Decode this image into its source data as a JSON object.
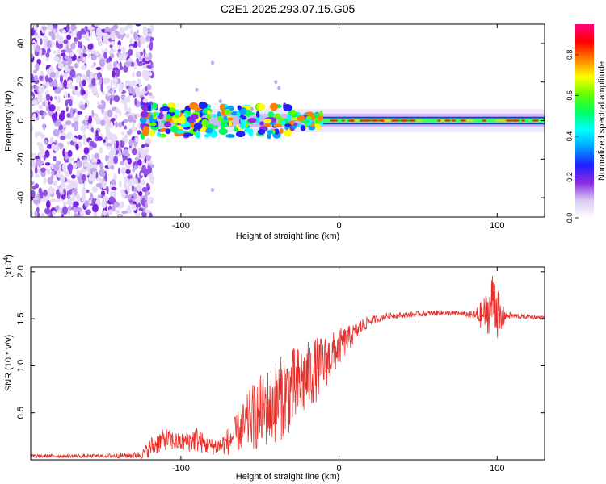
{
  "title": "C2E1.2025.293.07.15.G05",
  "chart_data": [
    {
      "type": "heatmap",
      "xlabel": "Height of straight line (km)",
      "ylabel": "Frequency (Hz)",
      "xlim": [
        -195,
        130
      ],
      "ylim": [
        -50,
        50
      ],
      "xticks": [
        -100,
        0,
        100
      ],
      "yticks": [
        -40,
        -20,
        0,
        20,
        40
      ],
      "colorbar": {
        "label": "Normalized spectral amplitude",
        "range": [
          0,
          0.95
        ],
        "ticks": [
          0,
          0.2,
          0.4,
          0.6,
          0.8
        ],
        "colors": [
          "#ffffff",
          "#d8c8f0",
          "#8a2be2",
          "#2020ff",
          "#00a0ff",
          "#00ffff",
          "#00ff60",
          "#60ff00",
          "#ffff00",
          "#ff8000",
          "#ff0000",
          "#ff0080"
        ]
      },
      "features": [
        {
          "region": "noise",
          "x_range": [
            -195,
            -118
          ],
          "y_range": [
            -50,
            50
          ],
          "amplitude": 0.15
        },
        {
          "region": "band",
          "x_range": [
            -125,
            130
          ],
          "y_center": 0,
          "amplitude": 0.55
        }
      ]
    },
    {
      "type": "line",
      "xlabel": "Height of straight line (km)",
      "ylabel": "SNR (10 * v/v)",
      "y_scale_label": "(x10",
      "y_scale_exp": "4",
      "xlim": [
        -195,
        130
      ],
      "ylim": [
        0,
        20500
      ],
      "xticks": [
        -100,
        0,
        100
      ],
      "yticks": [
        5000,
        10000,
        15000,
        20000
      ],
      "ytick_labels": [
        "0.5",
        "1.0",
        "1.5",
        "2.0"
      ],
      "series": [
        {
          "color": "#e8302a",
          "x": [
            -195,
            -150,
            -125,
            -118,
            -110,
            -100,
            -95,
            -90,
            -85,
            -80,
            -75,
            -70,
            -65,
            -60,
            -55,
            -50,
            -45,
            -40,
            -35,
            -30,
            -25,
            -20,
            -15,
            -10,
            -5,
            0,
            5,
            10,
            15,
            20,
            25,
            30,
            40,
            50,
            60,
            70,
            80,
            85,
            90,
            95,
            98,
            100,
            102,
            105,
            110,
            120,
            130
          ],
          "y": [
            400,
            400,
            500,
            1500,
            2200,
            1800,
            2000,
            2200,
            1600,
            1400,
            1500,
            2000,
            2800,
            3500,
            4500,
            5000,
            5600,
            6200,
            6800,
            7400,
            8000,
            8800,
            9500,
            10200,
            11000,
            12000,
            12700,
            13500,
            14300,
            14800,
            15000,
            15300,
            15400,
            15500,
            15600,
            15600,
            15500,
            15300,
            15400,
            15800,
            17500,
            16000,
            14500,
            15400,
            15300,
            15200,
            15100
          ],
          "noise": [
            200,
            200,
            400,
            1200,
            1200,
            1000,
            1200,
            1400,
            1000,
            900,
            1000,
            1500,
            2000,
            2800,
            3500,
            4000,
            4200,
            4500,
            4500,
            4500,
            4200,
            3800,
            3500,
            3000,
            2500,
            2000,
            1500,
            1000,
            800,
            500,
            400,
            350,
            300,
            300,
            300,
            300,
            300,
            500,
            1500,
            2500,
            3500,
            3000,
            2500,
            600,
            300,
            250,
            200
          ]
        }
      ]
    }
  ]
}
